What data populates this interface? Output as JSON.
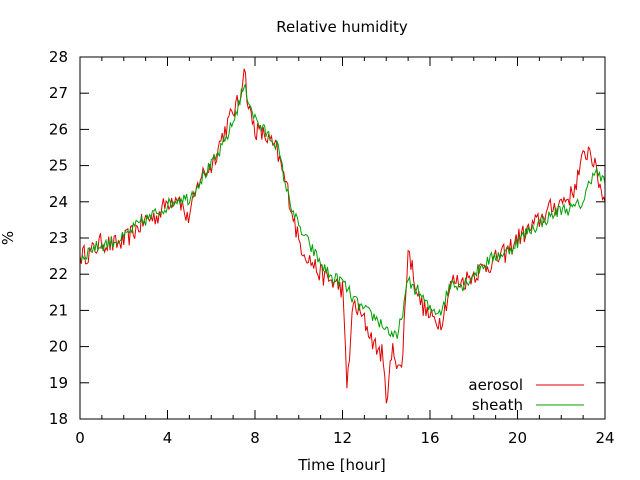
{
  "chart_data": {
    "type": "line",
    "title": "Relative humidity",
    "xlabel": "Time [hour]",
    "ylabel": "%",
    "xlim": [
      0,
      24
    ],
    "ylim": [
      18,
      28
    ],
    "x_ticks": [
      0,
      4,
      8,
      12,
      16,
      20,
      24
    ],
    "y_ticks": [
      18,
      19,
      20,
      21,
      22,
      23,
      24,
      25,
      26,
      27,
      28
    ],
    "grid": false,
    "legend_position": "bottom-right",
    "series": [
      {
        "name": "aerosol",
        "color": "#e00000",
        "points": [
          [
            0.0,
            22.5
          ],
          [
            0.5,
            22.6
          ],
          [
            1.0,
            22.9
          ],
          [
            1.5,
            22.8
          ],
          [
            2.0,
            22.9
          ],
          [
            2.5,
            23.2
          ],
          [
            3.0,
            23.5
          ],
          [
            3.5,
            23.6
          ],
          [
            4.0,
            24.0
          ],
          [
            4.5,
            24.2
          ],
          [
            4.9,
            23.5
          ],
          [
            5.2,
            24.0
          ],
          [
            5.5,
            24.7
          ],
          [
            6.0,
            25.0
          ],
          [
            6.5,
            25.8
          ],
          [
            7.0,
            26.5
          ],
          [
            7.3,
            26.8
          ],
          [
            7.5,
            27.8
          ],
          [
            7.7,
            26.6
          ],
          [
            8.0,
            26.0
          ],
          [
            8.5,
            25.8
          ],
          [
            9.0,
            25.4
          ],
          [
            9.5,
            24.3
          ],
          [
            10.0,
            22.9
          ],
          [
            10.5,
            22.4
          ],
          [
            11.0,
            22.0
          ],
          [
            11.5,
            21.8
          ],
          [
            12.0,
            21.6
          ],
          [
            12.2,
            18.9
          ],
          [
            12.5,
            21.2
          ],
          [
            13.0,
            20.7
          ],
          [
            13.5,
            20.0
          ],
          [
            13.8,
            19.8
          ],
          [
            14.0,
            18.6
          ],
          [
            14.3,
            19.9
          ],
          [
            14.7,
            19.3
          ],
          [
            15.0,
            22.7
          ],
          [
            15.5,
            21.3
          ],
          [
            16.0,
            20.8
          ],
          [
            16.5,
            20.7
          ],
          [
            17.0,
            21.8
          ],
          [
            17.5,
            21.8
          ],
          [
            18.0,
            22.0
          ],
          [
            18.5,
            22.2
          ],
          [
            19.0,
            22.4
          ],
          [
            19.5,
            22.6
          ],
          [
            20.0,
            23.0
          ],
          [
            20.5,
            23.2
          ],
          [
            21.0,
            23.5
          ],
          [
            21.5,
            23.8
          ],
          [
            22.0,
            24.0
          ],
          [
            22.5,
            24.2
          ],
          [
            23.0,
            25.2
          ],
          [
            23.3,
            25.5
          ],
          [
            23.6,
            24.8
          ],
          [
            24.0,
            24.0
          ]
        ]
      },
      {
        "name": "sheath",
        "color": "#00a000",
        "points": [
          [
            0.0,
            22.4
          ],
          [
            0.5,
            22.7
          ],
          [
            1.0,
            22.8
          ],
          [
            1.5,
            22.9
          ],
          [
            2.0,
            23.0
          ],
          [
            2.5,
            23.3
          ],
          [
            3.0,
            23.5
          ],
          [
            3.5,
            23.7
          ],
          [
            4.0,
            23.9
          ],
          [
            4.5,
            24.1
          ],
          [
            5.0,
            24.1
          ],
          [
            5.5,
            24.6
          ],
          [
            6.0,
            25.0
          ],
          [
            6.5,
            25.5
          ],
          [
            7.0,
            26.2
          ],
          [
            7.5,
            27.2
          ],
          [
            8.0,
            26.3
          ],
          [
            8.5,
            25.9
          ],
          [
            9.0,
            25.6
          ],
          [
            9.5,
            24.2
          ],
          [
            10.0,
            23.3
          ],
          [
            10.5,
            22.8
          ],
          [
            11.0,
            22.3
          ],
          [
            11.5,
            21.9
          ],
          [
            12.0,
            21.8
          ],
          [
            12.5,
            21.3
          ],
          [
            13.0,
            21.0
          ],
          [
            13.5,
            20.8
          ],
          [
            14.0,
            20.5
          ],
          [
            14.5,
            20.2
          ],
          [
            15.0,
            21.8
          ],
          [
            15.5,
            21.5
          ],
          [
            16.0,
            21.0
          ],
          [
            16.5,
            21.0
          ],
          [
            17.0,
            21.8
          ],
          [
            17.5,
            21.7
          ],
          [
            18.0,
            22.0
          ],
          [
            18.5,
            22.3
          ],
          [
            19.0,
            22.5
          ],
          [
            19.5,
            22.6
          ],
          [
            20.0,
            22.9
          ],
          [
            20.5,
            23.2
          ],
          [
            21.0,
            23.4
          ],
          [
            21.5,
            23.6
          ],
          [
            22.0,
            23.8
          ],
          [
            22.5,
            23.8
          ],
          [
            23.0,
            24.0
          ],
          [
            23.5,
            24.9
          ],
          [
            24.0,
            24.5
          ]
        ]
      }
    ]
  }
}
